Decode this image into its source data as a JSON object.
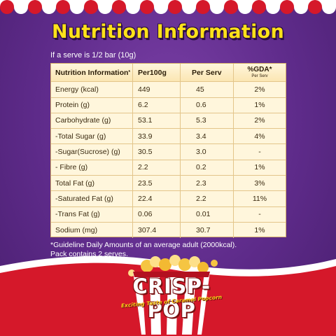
{
  "title": "Nutrition Information",
  "serve_note": "If a serve is 1/2 bar (10g)",
  "table": {
    "headers": {
      "c0": "Nutrition Information",
      "c0_mark": "*",
      "c1": "Per100g",
      "c2": "Per Serv",
      "c3": "%GDA*",
      "c3_sub": "Per Serv"
    },
    "rows": [
      {
        "name": "Energy (kcal)",
        "per100g": "449",
        "perserv": "45",
        "gda": "2%"
      },
      {
        "name": "Protein (g)",
        "per100g": "6.2",
        "perserv": "0.6",
        "gda": "1%"
      },
      {
        "name": "Carbohydrate (g)",
        "per100g": "53.1",
        "perserv": "5.3",
        "gda": "2%"
      },
      {
        "name": "-Total Sugar (g)",
        "per100g": "33.9",
        "perserv": "3.4",
        "gda": "4%"
      },
      {
        "name": "-Sugar(Sucrose) (g)",
        "per100g": "30.5",
        "perserv": "3.0",
        "gda": "-"
      },
      {
        "name": "- Fibre (g)",
        "per100g": "2.2",
        "perserv": "0.2",
        "gda": "1%"
      },
      {
        "name": "Total Fat (g)",
        "per100g": "23.5",
        "perserv": "2.3",
        "gda": "3%"
      },
      {
        "name": "-Saturated Fat (g)",
        "per100g": "22.4",
        "perserv": "2.2",
        "gda": "11%"
      },
      {
        "name": "-Trans Fat (g)",
        "per100g": "0.06",
        "perserv": "0.01",
        "gda": "-"
      },
      {
        "name": "Sodium (mg)",
        "per100g": "307.4",
        "perserv": "30.7",
        "gda": "1%"
      }
    ]
  },
  "footnote_line1": "*Guideline Daily Amounts of an average adult (2000kcal).",
  "footnote_line2": "Pack contains 2 serves.",
  "brand": {
    "name": "CRISP-POP",
    "tagline": "Exciting Taste of Caramel Popcorn"
  },
  "colors": {
    "background": "#5e2b8a",
    "title": "#ffe21a",
    "table_bg": "#fff6dc",
    "wave_red": "#d5182a"
  }
}
